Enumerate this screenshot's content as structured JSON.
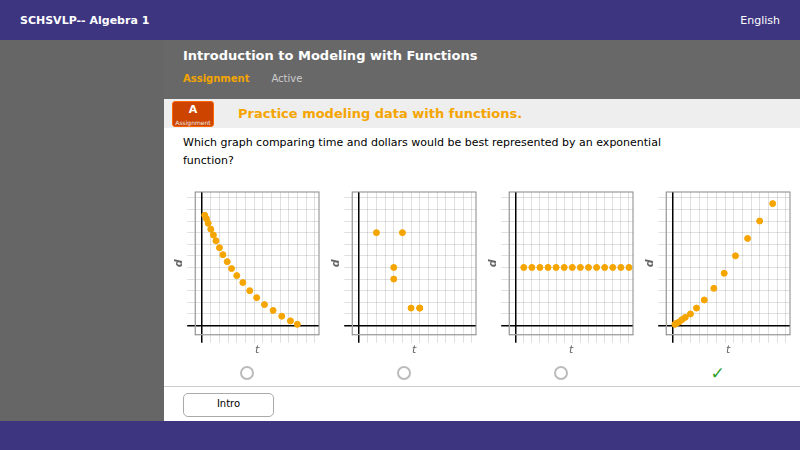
{
  "title": "Introduction to Modeling with Functions",
  "subtitle": "Which graph comparing time and dollars would be best represented by an exponential\nfunction?",
  "annotations": [
    "SCHSVLP-- Algebra 1",
    "English",
    "Assignment",
    "Active",
    "Practice modeling data with functions.",
    "A",
    "Assignment",
    "Intro"
  ],
  "chart_data": [
    {
      "type": "scatter",
      "xlabel": "t",
      "ylabel": "d",
      "color": "#f5a500",
      "marker": "circle",
      "x": [
        0.3,
        0.5,
        0.7,
        1.0,
        1.3,
        1.6,
        2.0,
        2.4,
        2.9,
        3.4,
        4.0,
        4.7,
        5.5,
        6.3,
        7.2,
        8.2,
        9.2,
        10.2,
        11.0
      ],
      "values": [
        9.5,
        9.2,
        8.8,
        8.3,
        7.8,
        7.3,
        6.7,
        6.1,
        5.5,
        4.9,
        4.3,
        3.7,
        3.0,
        2.4,
        1.8,
        1.3,
        0.8,
        0.4,
        0.1
      ],
      "xlim": [
        -0.8,
        13.5
      ],
      "xticks": [
        0,
        1,
        2,
        3,
        4,
        5,
        6,
        7,
        8,
        9,
        10,
        11,
        12,
        13
      ],
      "ylim": [
        -0.8,
        11.5
      ],
      "yticks": [
        0,
        1,
        2,
        3,
        4,
        5,
        6,
        7,
        8,
        9,
        10,
        11
      ],
      "grid": true,
      "tick_labels": false
    },
    {
      "type": "scatter",
      "xlabel": "t",
      "ylabel": "d",
      "color": "#f5a500",
      "marker": "circle",
      "x": [
        2,
        5,
        4,
        4,
        6,
        7,
        7
      ],
      "values": [
        8,
        8,
        5,
        4,
        1.5,
        1.5,
        1.5
      ],
      "xlim": [
        -0.8,
        13.5
      ],
      "xticks": [
        0,
        1,
        2,
        3,
        4,
        5,
        6,
        7,
        8,
        9,
        10,
        11,
        12,
        13
      ],
      "ylim": [
        -0.8,
        11.5
      ],
      "yticks": [
        0,
        1,
        2,
        3,
        4,
        5,
        6,
        7,
        8,
        9,
        10,
        11
      ],
      "grid": true,
      "tick_labels": false
    },
    {
      "type": "scatter",
      "xlabel": "t",
      "ylabel": "d",
      "color": "#f5a500",
      "marker": "circle",
      "x": [
        1,
        2,
        3,
        4,
        5,
        6,
        7,
        8,
        9,
        10,
        11,
        12,
        13,
        14
      ],
      "values": [
        5,
        5,
        5,
        5,
        5,
        5,
        5,
        5,
        5,
        5,
        5,
        5,
        5,
        5
      ],
      "xlim": [
        -0.8,
        14.5
      ],
      "xticks": [
        0,
        1,
        2,
        3,
        4,
        5,
        6,
        7,
        8,
        9,
        10,
        11,
        12,
        13,
        14
      ],
      "ylim": [
        -0.8,
        11.5
      ],
      "yticks": [
        0,
        1,
        2,
        3,
        4,
        5,
        6,
        7,
        8,
        9,
        10,
        11
      ],
      "grid": true,
      "tick_labels": false
    },
    {
      "type": "scatter",
      "xlabel": "t",
      "ylabel": "d",
      "color": "#f5a500",
      "marker": "circle",
      "x": [
        0.2,
        0.4,
        0.7,
        1.0,
        1.4,
        2.0,
        2.7,
        3.6,
        4.7,
        5.9,
        7.2,
        8.6,
        10.0,
        11.5
      ],
      "values": [
        0.1,
        0.2,
        0.3,
        0.5,
        0.7,
        1.0,
        1.5,
        2.2,
        3.2,
        4.5,
        6.0,
        7.5,
        9.0,
        10.5
      ],
      "xlim": [
        -0.8,
        13.5
      ],
      "xticks": [
        0,
        1,
        2,
        3,
        4,
        5,
        6,
        7,
        8,
        9,
        10,
        11,
        12,
        13
      ],
      "ylim": [
        -0.8,
        11.5
      ],
      "yticks": [
        0,
        1,
        2,
        3,
        4,
        5,
        6,
        7,
        8,
        9,
        10,
        11
      ],
      "grid": true,
      "tick_labels": false,
      "annotations": [
        "✓"
      ]
    }
  ]
}
